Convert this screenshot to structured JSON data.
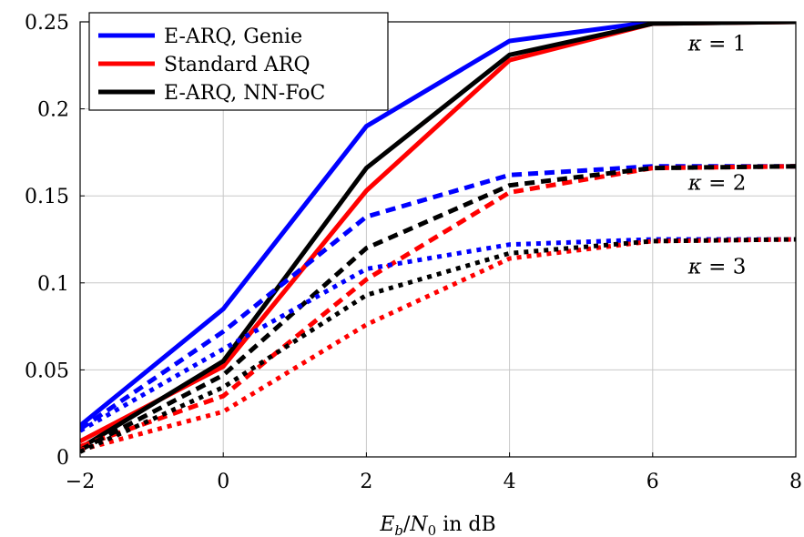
{
  "chart_data": {
    "type": "line",
    "title": "",
    "xlabel_parts": {
      "e": "E",
      "b": "b",
      "slash": "/",
      "n": "N",
      "zero": "0",
      "tail": " in dB"
    },
    "ylabel": "",
    "xlim": [
      -2,
      8
    ],
    "ylim": [
      0,
      0.25
    ],
    "xticks": [
      -2,
      0,
      2,
      4,
      6,
      8
    ],
    "xtick_labels": [
      "−2",
      "0",
      "2",
      "4",
      "6",
      "8"
    ],
    "yticks": [
      0,
      0.05,
      0.1,
      0.15,
      0.2,
      0.25
    ],
    "ytick_labels": [
      "0",
      "0.05",
      "0.1",
      "0.15",
      "0.2",
      "0.25"
    ],
    "grid": true,
    "legend_position": "top-left",
    "legend": [
      {
        "label": "E-ARQ, Genie",
        "color": "#0000ff"
      },
      {
        "label": "Standard ARQ",
        "color": "#ff0000"
      },
      {
        "label": "E-ARQ, NN-FoC",
        "color": "#000000"
      }
    ],
    "annotations": [
      {
        "text": "κ = 1",
        "x": 6.9,
        "y": 0.2335
      },
      {
        "text": "κ = 2",
        "x": 6.9,
        "y": 0.1535
      },
      {
        "text": "κ = 3",
        "x": 6.9,
        "y": 0.1055
      }
    ],
    "x": [
      -2,
      0,
      2,
      4,
      6,
      8
    ],
    "series": [
      {
        "name": "E-ARQ, Genie",
        "kappa": 1,
        "color": "#0000ff",
        "style": "solid",
        "values": [
          0.018,
          0.085,
          0.19,
          0.239,
          0.25,
          0.25
        ]
      },
      {
        "name": "Standard ARQ",
        "kappa": 1,
        "color": "#ff0000",
        "style": "solid",
        "values": [
          0.009,
          0.052,
          0.153,
          0.228,
          0.249,
          0.25
        ]
      },
      {
        "name": "E-ARQ, NN-FoC",
        "kappa": 1,
        "color": "#000000",
        "style": "solid",
        "values": [
          0.005,
          0.055,
          0.166,
          0.231,
          0.249,
          0.25
        ]
      },
      {
        "name": "E-ARQ, Genie",
        "kappa": 2,
        "color": "#0000ff",
        "style": "dashed",
        "values": [
          0.016,
          0.072,
          0.138,
          0.162,
          0.167,
          0.167
        ]
      },
      {
        "name": "Standard ARQ",
        "kappa": 2,
        "color": "#ff0000",
        "style": "dashed",
        "values": [
          0.006,
          0.035,
          0.102,
          0.152,
          0.166,
          0.167
        ]
      },
      {
        "name": "E-ARQ, NN-FoC",
        "kappa": 2,
        "color": "#000000",
        "style": "dashed",
        "values": [
          0.004,
          0.047,
          0.12,
          0.156,
          0.166,
          0.167
        ]
      },
      {
        "name": "E-ARQ, Genie",
        "kappa": 3,
        "color": "#0000ff",
        "style": "dotted",
        "values": [
          0.015,
          0.062,
          0.108,
          0.122,
          0.125,
          0.125
        ]
      },
      {
        "name": "Standard ARQ",
        "kappa": 3,
        "color": "#ff0000",
        "style": "dotted",
        "values": [
          0.004,
          0.026,
          0.076,
          0.114,
          0.124,
          0.125
        ]
      },
      {
        "name": "E-ARQ, NN-FoC",
        "kappa": 3,
        "color": "#000000",
        "style": "dotted",
        "values": [
          0.003,
          0.04,
          0.093,
          0.117,
          0.124,
          0.125
        ]
      }
    ]
  }
}
